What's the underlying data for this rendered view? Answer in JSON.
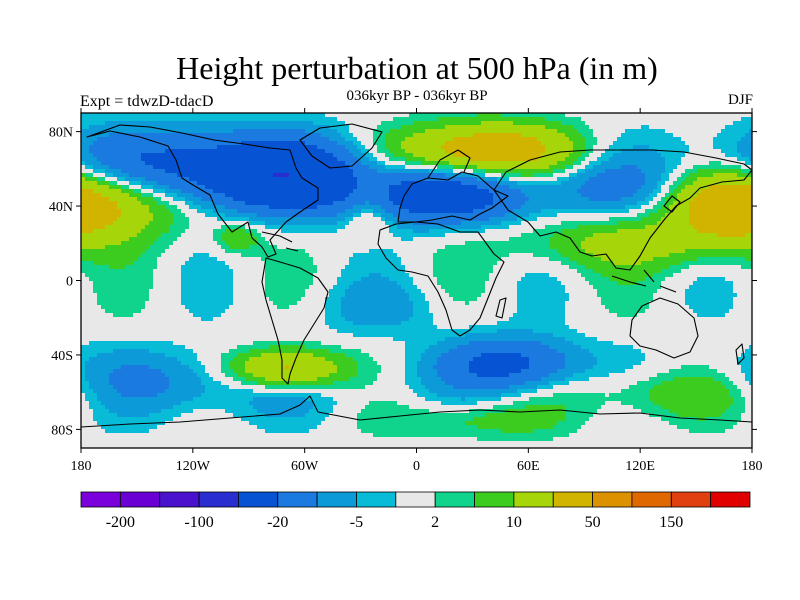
{
  "title": "Height perturbation at 500 hPa (in m)",
  "left_label": "Expt = tdwzD-tdacD",
  "center_label": "036kyr BP - 036kyr BP",
  "right_label": "DJF",
  "lat_labels": [
    "80N",
    "40N",
    "0",
    "40S",
    "80S"
  ],
  "lon_labels": [
    "180",
    "120W",
    "60W",
    "0",
    "60E",
    "120E",
    "180"
  ],
  "colorbar": {
    "colors": [
      "#7a00dc",
      "#6a00d4",
      "#4a12cc",
      "#2a2ed0",
      "#0654d4",
      "#1a7ae0",
      "#0c9ad8",
      "#08bcd8",
      "#e8e8e8",
      "#10d48c",
      "#3ccc20",
      "#a6d60a",
      "#d0b400",
      "#dc9200",
      "#e06800",
      "#e04010",
      "#e00000"
    ],
    "tick_labels": [
      "-200",
      "-100",
      "-20",
      "-5",
      "2",
      "10",
      "50",
      "150"
    ]
  },
  "map_data": {
    "type": "filled-contour",
    "variable": "500 hPa height perturbation (m)",
    "lat_range": [
      -90,
      90
    ],
    "lon_range": [
      -180,
      180
    ],
    "features": [
      {
        "type": "trough",
        "lon": -120,
        "lat": 60,
        "lon_sigma": 60,
        "lat_sigma": 14,
        "amp": -30
      },
      {
        "type": "trough",
        "lon": -70,
        "lat": 55,
        "lon_sigma": 25,
        "lat_sigma": 12,
        "amp": -25
      },
      {
        "type": "ridge",
        "lon": -162,
        "lat": 45,
        "lon_sigma": 28,
        "lat_sigma": 14,
        "amp": 25
      },
      {
        "type": "ridge",
        "lon": -96,
        "lat": 23,
        "lon_sigma": 9,
        "lat_sigma": 6,
        "amp": 10
      },
      {
        "type": "ridge",
        "lon": -25,
        "lat": 38,
        "lon_sigma": 10,
        "lat_sigma": 10,
        "amp": 12
      },
      {
        "type": "trough",
        "lon": 10,
        "lat": 45,
        "lon_sigma": 35,
        "lat_sigma": 10,
        "amp": -30
      },
      {
        "type": "ridge",
        "lon": 35,
        "lat": 70,
        "lon_sigma": 32,
        "lat_sigma": 10,
        "amp": 32
      },
      {
        "type": "trough",
        "lon": 100,
        "lat": 50,
        "lon_sigma": 25,
        "lat_sigma": 10,
        "amp": -10
      },
      {
        "type": "ridge",
        "lon": 110,
        "lat": 20,
        "lon_sigma": 40,
        "lat_sigma": 10,
        "amp": 12
      },
      {
        "type": "ridge",
        "lon": 165,
        "lat": 40,
        "lon_sigma": 22,
        "lat_sigma": 14,
        "amp": 25
      },
      {
        "type": "trough",
        "lon": -130,
        "lat": -55,
        "lon_sigma": 70,
        "lat_sigma": 12,
        "amp": -12
      },
      {
        "type": "ridge",
        "lon": -70,
        "lat": -48,
        "lon_sigma": 22,
        "lat_sigma": 8,
        "amp": 30
      },
      {
        "type": "trough",
        "lon": 50,
        "lat": -45,
        "lon_sigma": 25,
        "lat_sigma": 10,
        "amp": -25
      },
      {
        "type": "ridge",
        "lon": 140,
        "lat": -60,
        "lon_sigma": 40,
        "lat_sigma": 10,
        "amp": 12
      },
      {
        "type": "trough",
        "lon": -20,
        "lat": -15,
        "lon_sigma": 25,
        "lat_sigma": 10,
        "amp": -6
      },
      {
        "type": "ridge",
        "lon": 30,
        "lat": -75,
        "lon_sigma": 30,
        "lat_sigma": 7,
        "amp": 8
      }
    ]
  }
}
